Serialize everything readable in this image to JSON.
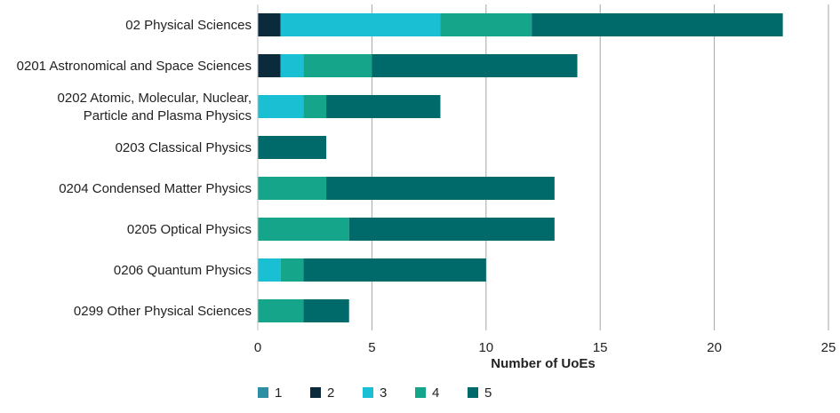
{
  "chart_data": {
    "type": "bar",
    "orientation": "horizontal",
    "stacked": true,
    "categories": [
      [
        "02 Physical Sciences"
      ],
      [
        "0201 Astronomical and Space Sciences"
      ],
      [
        "0202 Atomic, Molecular, Nuclear,",
        "Particle and Plasma Physics"
      ],
      [
        "0203 Classical Physics"
      ],
      [
        "0204 Condensed Matter Physics"
      ],
      [
        "0205 Optical Physics"
      ],
      [
        "0206 Quantum Physics"
      ],
      [
        "0299 Other Physical Sciences"
      ]
    ],
    "series": [
      {
        "name": "1",
        "color": "#2e8fa3",
        "values": [
          0,
          0,
          0,
          0,
          0,
          0,
          0,
          0
        ]
      },
      {
        "name": "2",
        "color": "#0b2a3c",
        "values": [
          1,
          1,
          0,
          0,
          0,
          0,
          0,
          0
        ]
      },
      {
        "name": "3",
        "color": "#1bbfd4",
        "values": [
          7,
          1,
          2,
          0,
          0,
          0,
          1,
          0
        ]
      },
      {
        "name": "4",
        "color": "#15a58a",
        "values": [
          4,
          3,
          1,
          0,
          3,
          4,
          1,
          2
        ]
      },
      {
        "name": "5",
        "color": "#00696a",
        "values": [
          11,
          9,
          5,
          3,
          10,
          9,
          8,
          2
        ]
      }
    ],
    "xlabel": "Number of UoEs",
    "xlim": [
      0,
      25
    ],
    "xticks": [
      0,
      5,
      10,
      15,
      20,
      25
    ],
    "grid": "vertical",
    "legend_position": "bottom-left"
  }
}
